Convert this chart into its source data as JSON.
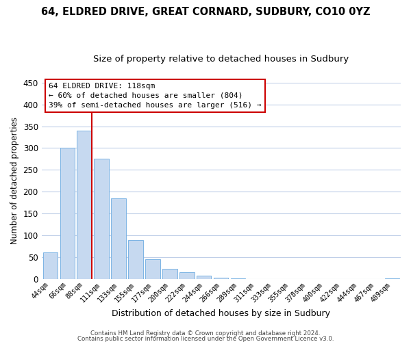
{
  "title": "64, ELDRED DRIVE, GREAT CORNARD, SUDBURY, CO10 0YZ",
  "subtitle": "Size of property relative to detached houses in Sudbury",
  "xlabel": "Distribution of detached houses by size in Sudbury",
  "ylabel": "Number of detached properties",
  "bar_labels": [
    "44sqm",
    "66sqm",
    "88sqm",
    "111sqm",
    "133sqm",
    "155sqm",
    "177sqm",
    "200sqm",
    "222sqm",
    "244sqm",
    "266sqm",
    "289sqm",
    "311sqm",
    "333sqm",
    "355sqm",
    "378sqm",
    "400sqm",
    "422sqm",
    "444sqm",
    "467sqm",
    "489sqm"
  ],
  "bar_values": [
    62,
    300,
    340,
    275,
    185,
    90,
    46,
    24,
    16,
    8,
    4,
    2,
    1,
    1,
    1,
    0,
    0,
    0,
    0,
    0,
    2
  ],
  "bar_color": "#c6d9f0",
  "bar_edge_color": "#7cb4e4",
  "vline_after_index": 2,
  "vline_color": "#cc0000",
  "ylim": [
    0,
    450
  ],
  "yticks": [
    0,
    50,
    100,
    150,
    200,
    250,
    300,
    350,
    400,
    450
  ],
  "annotation_title": "64 ELDRED DRIVE: 118sqm",
  "annotation_line1": "← 60% of detached houses are smaller (804)",
  "annotation_line2": "39% of semi-detached houses are larger (516) →",
  "annotation_box_color": "#ffffff",
  "annotation_box_edge": "#cc0000",
  "footer1": "Contains HM Land Registry data © Crown copyright and database right 2024.",
  "footer2": "Contains public sector information licensed under the Open Government Licence v3.0.",
  "bg_color": "#ffffff",
  "grid_color": "#c0cfe8"
}
